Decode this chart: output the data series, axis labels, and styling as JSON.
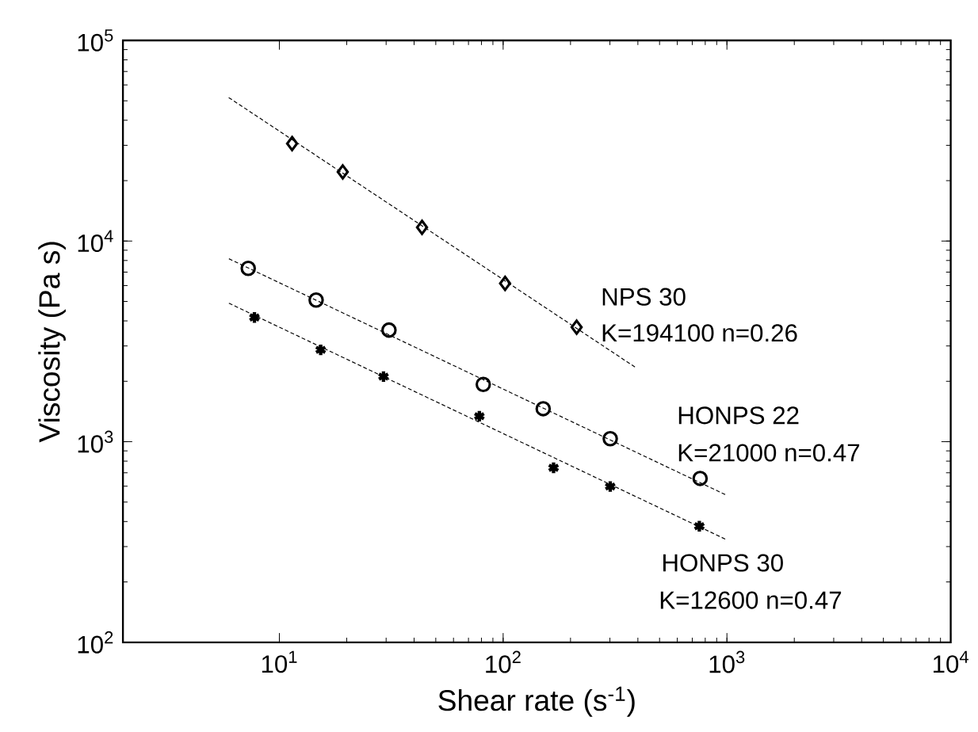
{
  "chart_data": {
    "type": "scatter",
    "xlabel": "Shear rate (s$^{-1}$)",
    "ylabel": "Viscosity (Pa s)",
    "log": "xy",
    "grid": false,
    "xlim": [
      2,
      10000
    ],
    "ylim": [
      100,
      100000
    ],
    "xticks": [
      {
        "value": 10,
        "label": "10$^{1}$"
      },
      {
        "value": 100,
        "label": "10$^{2}$"
      },
      {
        "value": 1000,
        "label": "10$^{3}$"
      },
      {
        "value": 10000,
        "label": "10$^{4}$"
      }
    ],
    "yticks": [
      {
        "value": 100,
        "label": "10$^{2}$"
      },
      {
        "value": 1000,
        "label": "10$^{3}$"
      },
      {
        "value": 10000,
        "label": "10$^{4}$"
      },
      {
        "value": 100000,
        "label": "10$^{5}$"
      }
    ],
    "series": [
      {
        "type": "scatter",
        "marker": "diamond",
        "color": "#000000",
        "x": [
          11.4,
          19.2,
          43.4,
          102,
          213
        ],
        "values": [
          30600,
          22100,
          11700,
          6150,
          3720
        ]
      },
      {
        "type": "scatter",
        "marker": "circle",
        "color": "#000000",
        "x": [
          7.26,
          14.6,
          30.9,
          81.5,
          151,
          301,
          759
        ],
        "values": [
          7310,
          5080,
          3600,
          1930,
          1460,
          1035,
          656
        ]
      },
      {
        "type": "scatter",
        "marker": "cross",
        "color": "#000000",
        "x": [
          7.74,
          15.3,
          29.2,
          78.3,
          168,
          301,
          753
        ],
        "values": [
          4160,
          2870,
          2110,
          1340,
          741,
          598,
          379
        ]
      },
      {
        "type": "line",
        "marker": "none",
        "line_style": "dashed",
        "color": "#000000",
        "x": [
          5.94,
          394
        ],
        "values": [
          51900,
          2330
        ]
      },
      {
        "type": "line",
        "marker": "none",
        "line_style": "dashed",
        "color": "#000000",
        "x": [
          5.95,
          1000
        ],
        "values": [
          8160,
          540
        ]
      },
      {
        "type": "line",
        "marker": "none",
        "line_style": "dashed",
        "color": "#000000",
        "x": [
          5.95,
          1000
        ],
        "values": [
          4900,
          324
        ]
      }
    ],
    "annotations": [
      "NPS 30",
      "K=194100 n=0.26",
      "HONPS 22",
      "K=21000 n=0.47",
      "HONPS 30",
      "K=12600 n=0.47"
    ]
  }
}
